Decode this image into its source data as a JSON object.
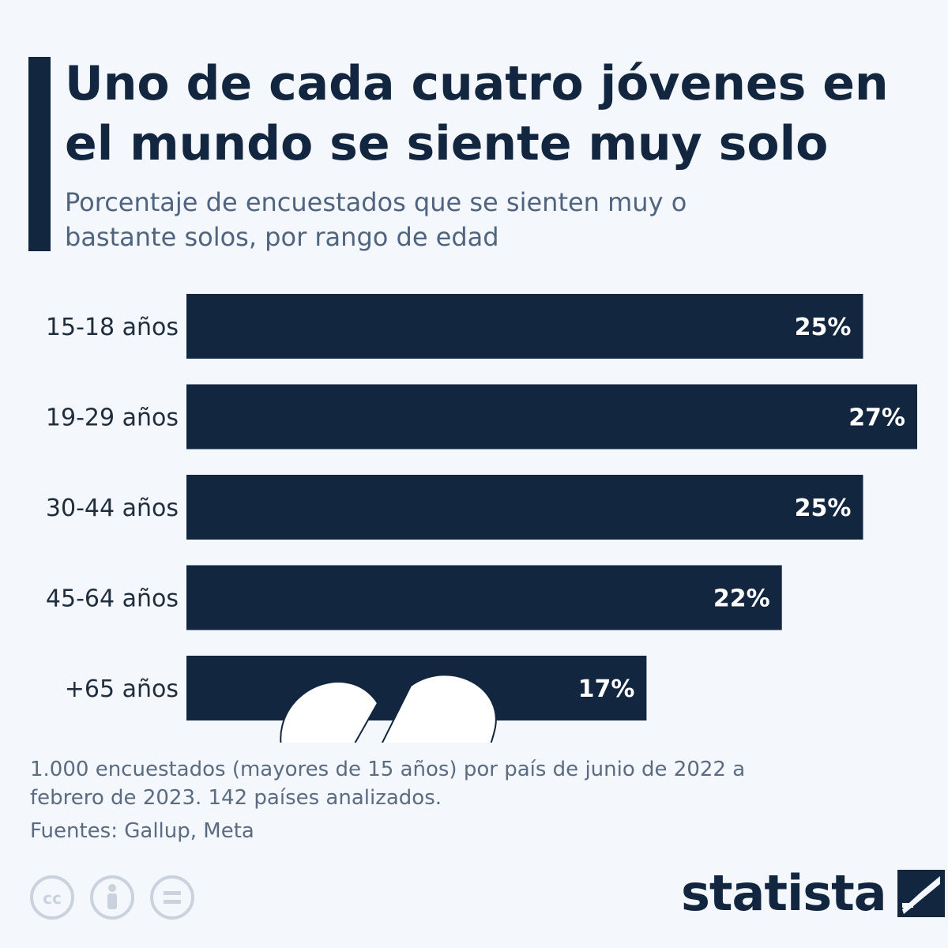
{
  "header": {
    "title": "Uno de cada cuatro jóvenes en el mundo se siente muy solo",
    "subtitle": "Porcentaje de encuestados que se sienten muy o bastante solos, por rango de edad"
  },
  "chart_data": {
    "type": "bar",
    "orientation": "horizontal",
    "categories": [
      "15-18 años",
      "19-29 años",
      "30-44 años",
      "45-64 años",
      "+65 años"
    ],
    "values": [
      25,
      27,
      25,
      22,
      17
    ],
    "value_labels": [
      "25%",
      "27%",
      "25%",
      "22%",
      "17%"
    ],
    "unit": "%",
    "title": "Uno de cada cuatro jóvenes en el mundo se siente muy solo",
    "subtitle": "Porcentaje de encuestados que se sienten muy o bastante solos, por rango de edad",
    "xlabel": "",
    "ylabel": "",
    "grid": false,
    "bar_color": "#12263f",
    "decoration": "broken-heart-icon"
  },
  "footer": {
    "note": "1.000 encuestados (mayores de 15 años) por país de junio de 2022 a febrero de 2023. 142 países analizados.",
    "source": "Fuentes: Gallup, Meta",
    "license_icons": [
      "creative-commons-icon",
      "attribution-icon",
      "no-derivatives-icon"
    ],
    "brand": "statista"
  },
  "colors": {
    "background": "#f4f7fb",
    "primary": "#12263f",
    "subtitle": "#4f6480",
    "footer_text": "#5a6b82",
    "icon_gray": "#c9d2dd"
  }
}
